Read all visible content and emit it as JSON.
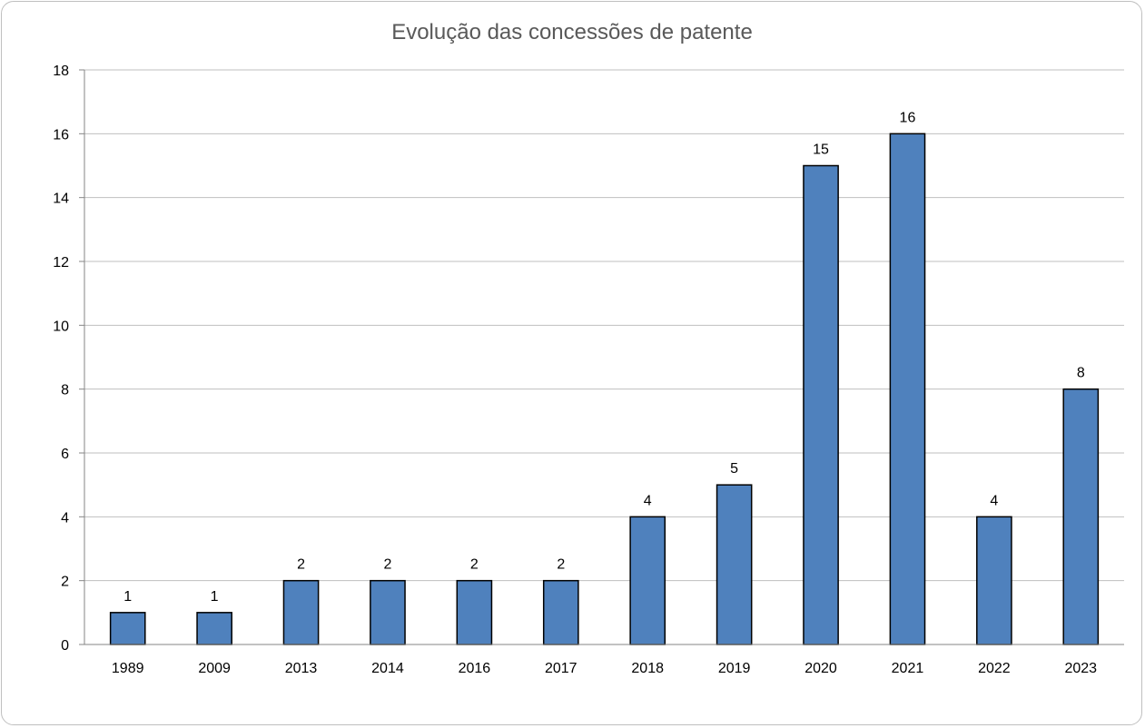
{
  "chart_data": {
    "type": "bar",
    "title": "Evolução das concessões  de patente",
    "xlabel": "",
    "ylabel": "",
    "categories": [
      "1989",
      "2009",
      "2013",
      "2014",
      "2016",
      "2017",
      "2018",
      "2019",
      "2020",
      "2021",
      "2022",
      "2023"
    ],
    "values": [
      1,
      1,
      2,
      2,
      2,
      2,
      4,
      5,
      15,
      16,
      4,
      8
    ],
    "ylim": [
      0,
      18
    ],
    "yticks": [
      0,
      2,
      4,
      6,
      8,
      10,
      12,
      14,
      16,
      18
    ],
    "grid": true,
    "legend": "none",
    "data_labels": true,
    "colors": {
      "bar_fill": "#4f81bd",
      "bar_stroke": "#000000",
      "gridline": "#bfbfbf",
      "axis": "#868686"
    }
  }
}
